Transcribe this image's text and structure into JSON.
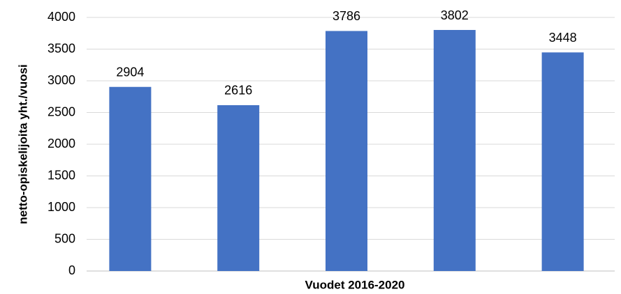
{
  "chart_data": {
    "type": "bar",
    "categories": [
      null,
      null,
      null,
      null,
      null
    ],
    "values": [
      2904,
      2616,
      3786,
      3802,
      3448
    ],
    "color": "#4472c4",
    "ylim": [
      0,
      4000
    ],
    "yticks": [
      0,
      500,
      1000,
      1500,
      2000,
      2500,
      3000,
      3500,
      4000
    ],
    "grid": true,
    "xlabel": "Vuodet 2016-2020",
    "ylabel": "netto-opiskelijoita yht./vuosi"
  }
}
